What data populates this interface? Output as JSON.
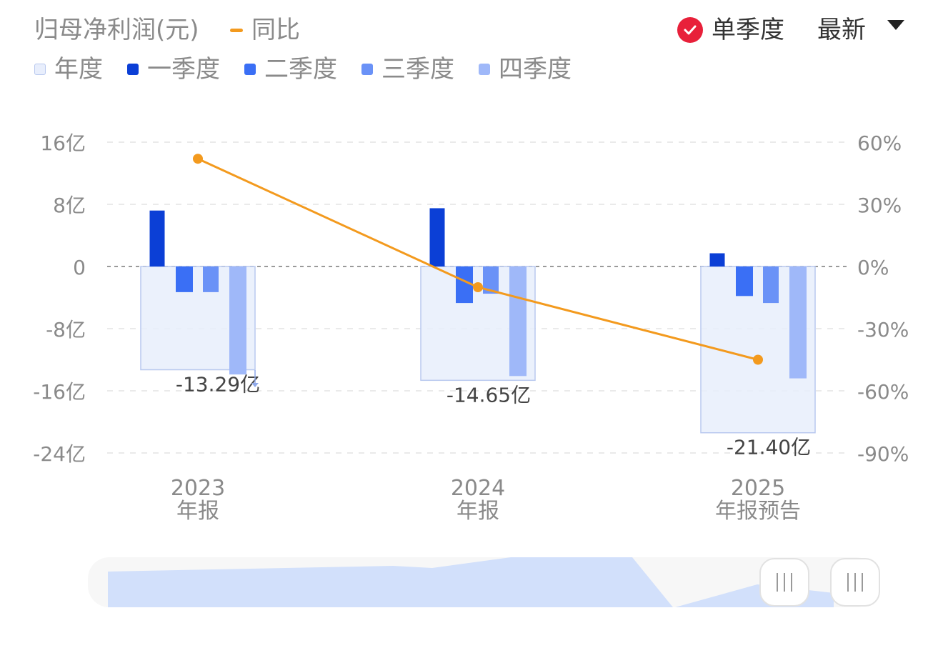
{
  "header": {
    "title": "归母净利润(元)",
    "yoy_label": "同比",
    "single_quarter_label": "单季度",
    "latest_label": "最新"
  },
  "legend": [
    {
      "label": "年度",
      "color": "#e8eefc",
      "border": "#b9c9ef"
    },
    {
      "label": "一季度",
      "color": "#0b3fd6"
    },
    {
      "label": "二季度",
      "color": "#3a6ff5"
    },
    {
      "label": "三季度",
      "color": "#6a92f7"
    },
    {
      "label": "四季度",
      "color": "#9fb8f9"
    }
  ],
  "chart_data": {
    "type": "bar",
    "categories": [
      "2023\n年报",
      "2024\n年报",
      "2025\n年报预告"
    ],
    "left_axis": {
      "ylim": [
        -24,
        16
      ],
      "ticks": [
        "16亿",
        "8亿",
        "0",
        "-8亿",
        "-16亿",
        "-24亿"
      ],
      "tick_values": [
        16,
        8,
        0,
        -8,
        -16,
        -24
      ]
    },
    "right_axis": {
      "ylim": [
        -90,
        60
      ],
      "ticks": [
        "60%",
        "30%",
        "0%",
        "-30%",
        "-60%",
        "-90%"
      ],
      "tick_values": [
        60,
        30,
        0,
        -30,
        -60,
        -90
      ]
    },
    "series": [
      {
        "name": "年度",
        "values": [
          -13.29,
          -14.65,
          -21.4
        ],
        "labels": [
          "-13.29亿",
          "-14.65亿",
          "-21.40亿"
        ]
      },
      {
        "name": "一季度",
        "values": [
          7.2,
          7.5,
          1.7
        ]
      },
      {
        "name": "二季度",
        "values": [
          -3.3,
          -4.7,
          -3.8
        ]
      },
      {
        "name": "三季度",
        "values": [
          -3.3,
          -3.5,
          -4.7
        ]
      },
      {
        "name": "四季度",
        "values": [
          -13.9,
          -14.1,
          -14.4
        ]
      },
      {
        "name": "同比",
        "axis": "right",
        "type": "line",
        "values": [
          52,
          -10,
          -45
        ]
      }
    ],
    "grid": true,
    "zero_line": "dashed"
  },
  "colors": {
    "yoy_line": "#f39a1e",
    "annual_fill": "#e8eefc",
    "annual_border": "#b9c9ef",
    "grid": "#e4e4e4",
    "axis_text": "#8a8a8a"
  }
}
